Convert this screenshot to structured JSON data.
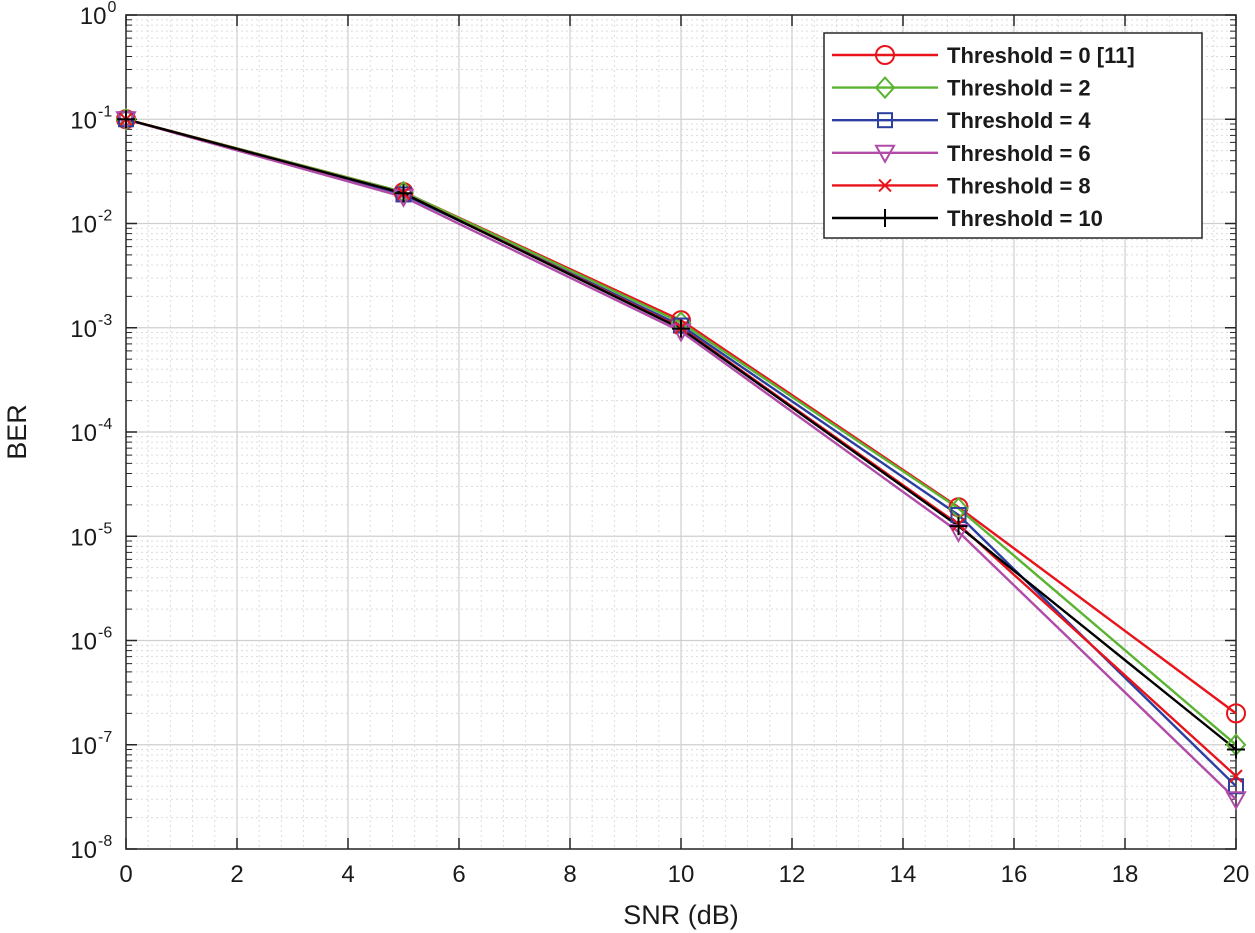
{
  "chart_data": {
    "type": "line",
    "title": "",
    "xlabel": "SNR (dB)",
    "ylabel": "BER",
    "xlim": [
      0,
      20
    ],
    "ylim": [
      1e-08,
      1
    ],
    "yscale": "log",
    "grid": "major-and-minor",
    "legend_position": "top-right",
    "x_ticks": [
      "0",
      "2",
      "4",
      "6",
      "8",
      "10",
      "12",
      "14",
      "16",
      "18",
      "20"
    ],
    "y_ticks": [
      {
        "base": "10",
        "exp": "0"
      },
      {
        "base": "10",
        "exp": "-1"
      },
      {
        "base": "10",
        "exp": "-2"
      },
      {
        "base": "10",
        "exp": "-3"
      },
      {
        "base": "10",
        "exp": "-4"
      },
      {
        "base": "10",
        "exp": "-5"
      },
      {
        "base": "10",
        "exp": "-6"
      },
      {
        "base": "10",
        "exp": "-7"
      },
      {
        "base": "10",
        "exp": "-8"
      }
    ],
    "x": [
      0,
      5,
      10,
      15,
      20
    ],
    "series": [
      {
        "name": "Threshold = 0 [11]",
        "color": "#e8131b",
        "marker": "circle",
        "values": [
          0.1,
          0.02,
          0.00118,
          1.9e-05,
          2e-07
        ]
      },
      {
        "name": "Threshold = 2",
        "color": "#5ab432",
        "marker": "diamond",
        "values": [
          0.1,
          0.02,
          0.00112,
          1.85e-05,
          1e-07
        ]
      },
      {
        "name": "Threshold = 4",
        "color": "#2a3fa0",
        "marker": "square",
        "values": [
          0.1,
          0.019,
          0.00105,
          1.6e-05,
          4e-08
        ]
      },
      {
        "name": "Threshold = 6",
        "color": "#b04ba8",
        "marker": "triangle-down",
        "values": [
          0.1,
          0.018,
          0.00092,
          1.1e-05,
          3e-08
        ]
      },
      {
        "name": "Threshold = 8",
        "color": "#e8131b",
        "marker": "x",
        "values": [
          0.1,
          0.0195,
          0.001,
          1.3e-05,
          5e-08
        ]
      },
      {
        "name": "Threshold = 10",
        "color": "#000000",
        "marker": "plus",
        "values": [
          0.1,
          0.0195,
          0.00098,
          1.25e-05,
          9e-08
        ]
      }
    ]
  }
}
